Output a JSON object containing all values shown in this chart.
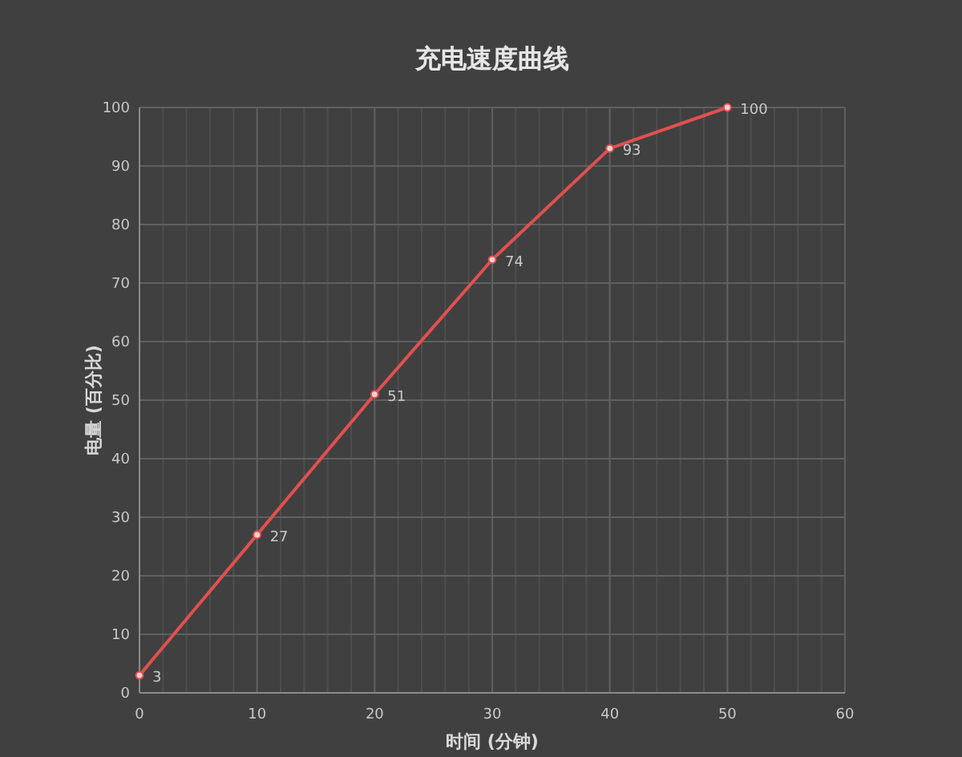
{
  "chart_data": {
    "type": "line",
    "title": "充电速度曲线",
    "xlabel": "时间 (分钟)",
    "ylabel": "电量 (百分比)",
    "x": [
      0,
      10,
      20,
      30,
      40,
      50
    ],
    "series": [
      {
        "color": "#e0504f",
        "values": [
          3,
          27,
          51,
          74,
          93,
          100
        ]
      }
    ],
    "xlim": [
      0,
      60
    ],
    "xticks": [
      0,
      10,
      20,
      30,
      40,
      50,
      60
    ],
    "ylim": [
      0,
      100
    ],
    "yticks": [
      0,
      10,
      20,
      30,
      40,
      50,
      60,
      70,
      80,
      90,
      100
    ],
    "grid": true,
    "marker": "circle",
    "line_style": "solid",
    "data_labels": true
  }
}
